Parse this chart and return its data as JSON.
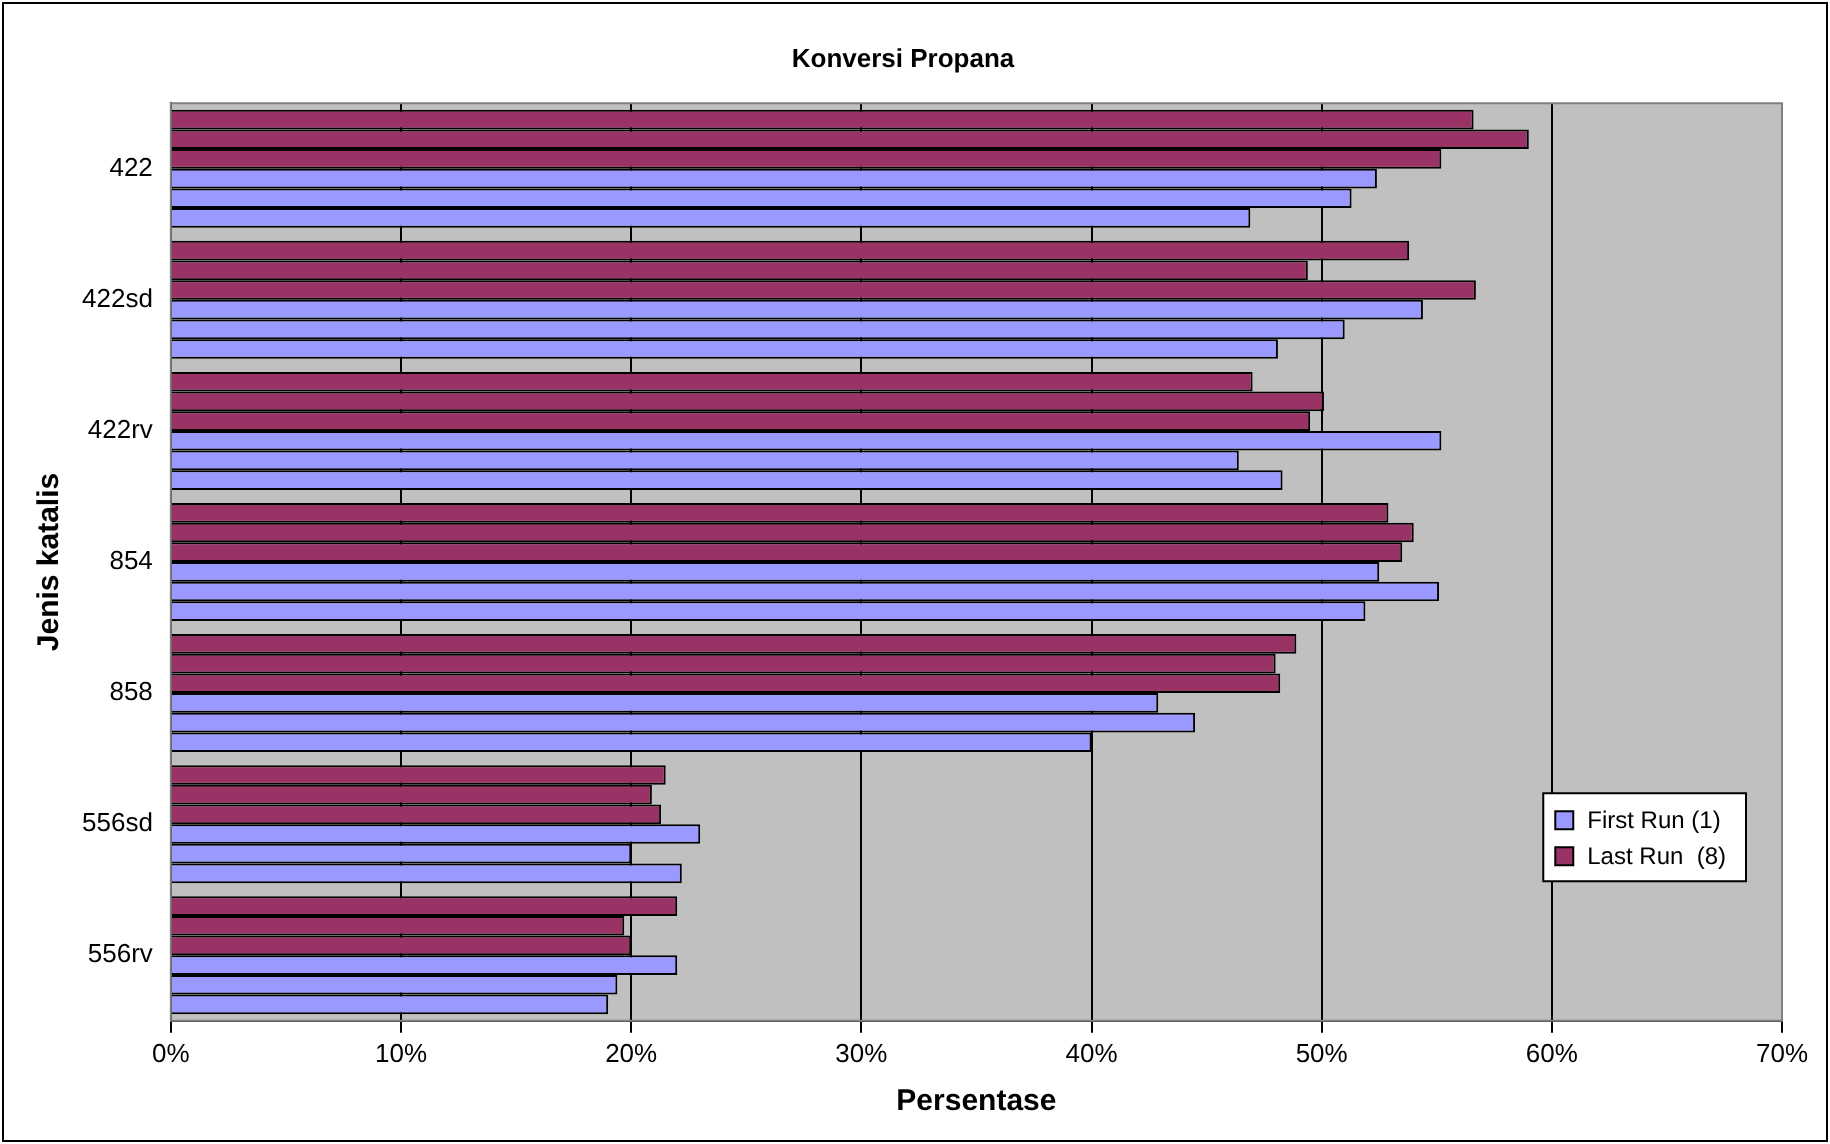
{
  "chart_data": {
    "type": "bar",
    "orientation": "horizontal",
    "title": "Konversi Propana",
    "xlabel": "Persentase",
    "ylabel": "Jenis katalis",
    "categories": [
      "422",
      "422sd",
      "422rv",
      "854",
      "858",
      "556sd",
      "556rv"
    ],
    "series": [
      {
        "name": "Last Run  (8)",
        "color": "#993366",
        "values": [
          56.6,
          53.8,
          47.0,
          52.9,
          48.9,
          21.5,
          22.0
        ]
      },
      {
        "color": "#993366",
        "values": [
          59.0,
          49.4,
          50.1,
          54.0,
          48.0,
          20.9,
          19.7
        ]
      },
      {
        "color": "#993366",
        "values": [
          55.2,
          56.7,
          49.5,
          53.5,
          48.2,
          21.3,
          20.0
        ]
      },
      {
        "color": "#9999ff",
        "values": [
          52.4,
          54.4,
          55.2,
          52.5,
          42.9,
          23.0,
          22.0
        ]
      },
      {
        "color": "#9999ff",
        "values": [
          51.3,
          51.0,
          46.4,
          55.1,
          44.5,
          20.0,
          19.4
        ]
      },
      {
        "name": "First Run (1)",
        "color": "#9999ff",
        "values": [
          46.9,
          48.1,
          48.3,
          51.9,
          40.0,
          22.2,
          19.0
        ]
      }
    ],
    "xlim": [
      0,
      70
    ],
    "xticks": [
      {
        "value": 0,
        "label": "0%"
      },
      {
        "value": 10,
        "label": "10%"
      },
      {
        "value": 20,
        "label": "20%"
      },
      {
        "value": 30,
        "label": "30%"
      },
      {
        "value": 40,
        "label": "40%"
      },
      {
        "value": 50,
        "label": "50%"
      },
      {
        "value": 60,
        "label": "60%"
      },
      {
        "value": 70,
        "label": "70%"
      }
    ],
    "grid": "x",
    "legend": "right"
  }
}
